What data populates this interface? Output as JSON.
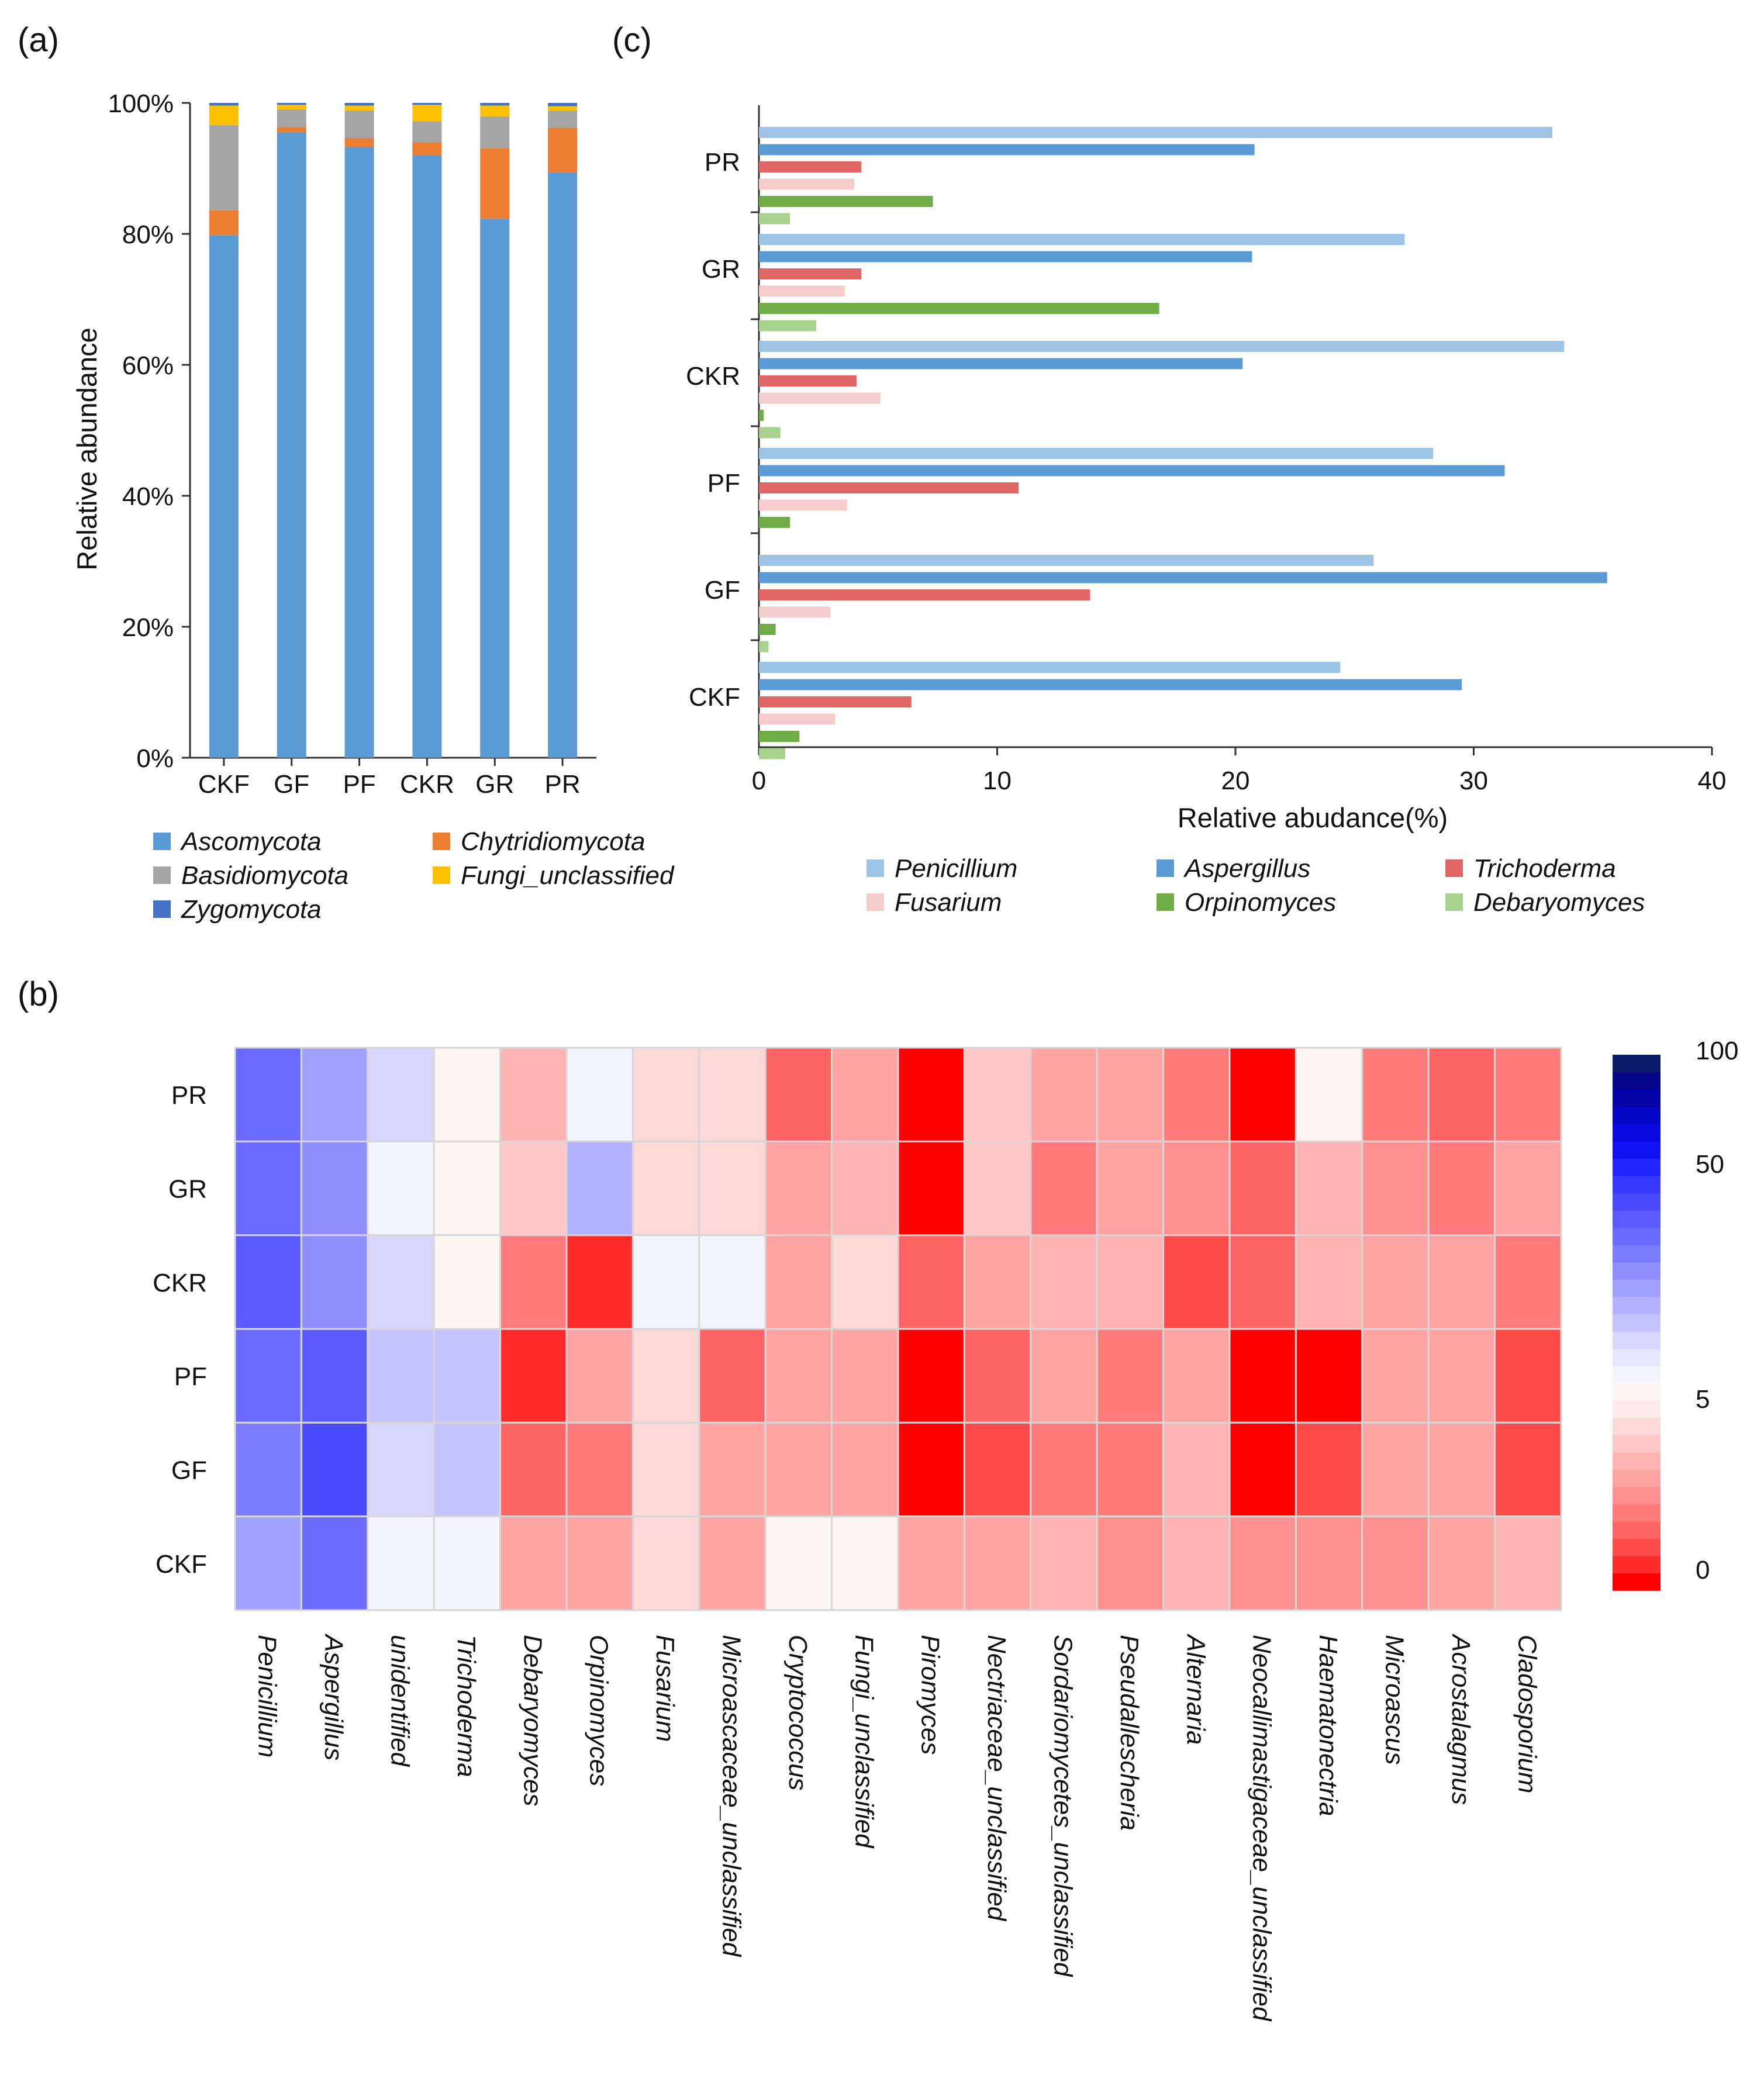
{
  "panel_labels": {
    "a": "(a)",
    "b": "(b)",
    "c": "(c)"
  },
  "chart_data": [
    {
      "id": "a",
      "type": "bar",
      "stacked": true,
      "title": "",
      "xlabel": "",
      "ylabel": "Relative abundance",
      "ylim": [
        0,
        100
      ],
      "yticks": [
        "0%",
        "20%",
        "40%",
        "60%",
        "80%",
        "100%"
      ],
      "categories": [
        "CKF",
        "GF",
        "PF",
        "CKR",
        "GR",
        "PR"
      ],
      "series": [
        {
          "name": "Ascomycota",
          "color": "#5B9BD5",
          "values": [
            79.8,
            95.5,
            93.3,
            92.0,
            82.3,
            89.4
          ]
        },
        {
          "name": "Chytridiomycota",
          "color": "#ED7D31",
          "values": [
            3.8,
            0.8,
            1.3,
            2.0,
            10.8,
            6.8
          ]
        },
        {
          "name": "Basidiomycota",
          "color": "#A5A5A5",
          "values": [
            13.0,
            2.7,
            4.2,
            3.2,
            4.8,
            2.6
          ]
        },
        {
          "name": "Fungi_unclassified",
          "color": "#FFC000",
          "values": [
            3.0,
            0.7,
            0.8,
            2.5,
            1.7,
            0.7
          ]
        },
        {
          "name": "Zygomycota",
          "color": "#4472C4",
          "values": [
            0.4,
            0.3,
            0.4,
            0.3,
            0.4,
            0.5
          ]
        }
      ],
      "legend": {
        "position": "bottom",
        "order": [
          "Ascomycota",
          "Chytridiomycota",
          "Basidiomycota",
          "Fungi_unclassified",
          "Zygomycota"
        ]
      }
    },
    {
      "id": "c",
      "type": "bar",
      "orientation": "horizontal",
      "title": "",
      "xlabel": "Relative abudance(%)",
      "ylabel": "",
      "xlim": [
        0,
        40
      ],
      "xticks": [
        "0",
        "10",
        "20",
        "30",
        "40"
      ],
      "categories": [
        "PR",
        "GR",
        "CKR",
        "PF",
        "GF",
        "CKF"
      ],
      "series": [
        {
          "name": "Penicillium",
          "color": "#9DC3E6",
          "values": [
            33.3,
            27.1,
            33.8,
            28.3,
            25.8,
            24.4
          ]
        },
        {
          "name": "Aspergillus",
          "color": "#5B9BD5",
          "values": [
            20.8,
            20.7,
            20.3,
            31.3,
            35.6,
            29.5
          ]
        },
        {
          "name": "Trichoderma",
          "color": "#E06666",
          "values": [
            4.3,
            4.3,
            4.1,
            10.9,
            13.9,
            6.4
          ]
        },
        {
          "name": "Fusarium",
          "color": "#F4CCCC",
          "values": [
            4.0,
            3.6,
            5.1,
            3.7,
            3.0,
            3.2
          ]
        },
        {
          "name": "Orpinomyces",
          "color": "#70AD47",
          "values": [
            7.3,
            16.8,
            0.2,
            1.3,
            0.7,
            1.7
          ]
        },
        {
          "name": "Debaryomyces",
          "color": "#A9D18E",
          "values": [
            1.3,
            2.4,
            0.9,
            0.0,
            0.4,
            1.1
          ]
        }
      ],
      "legend": {
        "position": "bottom",
        "order": [
          "Penicillium",
          "Aspergillus",
          "Trichoderma",
          "Fusarium",
          "Orpinomyces",
          "Debaryomyces"
        ]
      }
    },
    {
      "id": "b",
      "type": "heatmap",
      "title": "",
      "rows": [
        "PR",
        "GR",
        "CKR",
        "PF",
        "GF",
        "CKF"
      ],
      "columns": [
        "Penicillium",
        "Aspergillus",
        "unidentified",
        "Trichoderma",
        "Debaryomyces",
        "Orpinomyces",
        "Fusarium",
        "Microascaceae_unclassified",
        "Cryptococcus",
        "Fungi_unclassified",
        "Piromyces",
        "Nectriaceae_unclassified",
        "Sordariomycetes_unclassified",
        "Pseudallescheria",
        "Alternaria",
        "Neocallimastigaceae_unclassified",
        "Haematonectria",
        "Microascus",
        "Acrostalagmus",
        "Cladosporium"
      ],
      "color_levels": [
        "#FF0000",
        "#FF2A2A",
        "#FF4A4A",
        "#FF6464",
        "#FF7B7B",
        "#FF9090",
        "#FFA3A3",
        "#FFB4B4",
        "#FFC6C6",
        "#FFD8D8",
        "#FFEAEA",
        "#FFF6F4",
        "#F4F4FF",
        "#E6E6FF",
        "#D6D6FF",
        "#C4C4FF",
        "#B2B2FF",
        "#A0A0FF",
        "#8E8EFF",
        "#7C7CFF",
        "#6A6AFF",
        "#5A5AFF",
        "#4A4AFF",
        "#3838FF",
        "#2424FF",
        "#1111F4",
        "#0A0AE0",
        "#0606C6",
        "#0404A8",
        "#05058A",
        "#0C1A6B"
      ],
      "level_matrix": [
        [
          20,
          17,
          14,
          11,
          7,
          12,
          9,
          9,
          3,
          6,
          0,
          8,
          6,
          6,
          4,
          0,
          11,
          4,
          3,
          4
        ],
        [
          20,
          18,
          12,
          11,
          8,
          16,
          9,
          9,
          6,
          7,
          0,
          8,
          4,
          6,
          5,
          3,
          7,
          5,
          4,
          6
        ],
        [
          21,
          18,
          14,
          11,
          4,
          1,
          12,
          12,
          6,
          9,
          3,
          6,
          7,
          7,
          2,
          3,
          7,
          6,
          6,
          4
        ],
        [
          20,
          21,
          15,
          15,
          1,
          6,
          9,
          3,
          6,
          6,
          0,
          3,
          6,
          4,
          6,
          0,
          0,
          6,
          6,
          2
        ],
        [
          19,
          22,
          14,
          15,
          3,
          4,
          9,
          6,
          6,
          6,
          0,
          2,
          4,
          4,
          7,
          0,
          2,
          6,
          6,
          2
        ],
        [
          17,
          20,
          12,
          12,
          6,
          6,
          9,
          6,
          11,
          11,
          6,
          6,
          7,
          5,
          7,
          5,
          5,
          5,
          6,
          7
        ]
      ],
      "colorbar_ticks": [
        "100",
        "50",
        "5",
        "0"
      ]
    }
  ]
}
